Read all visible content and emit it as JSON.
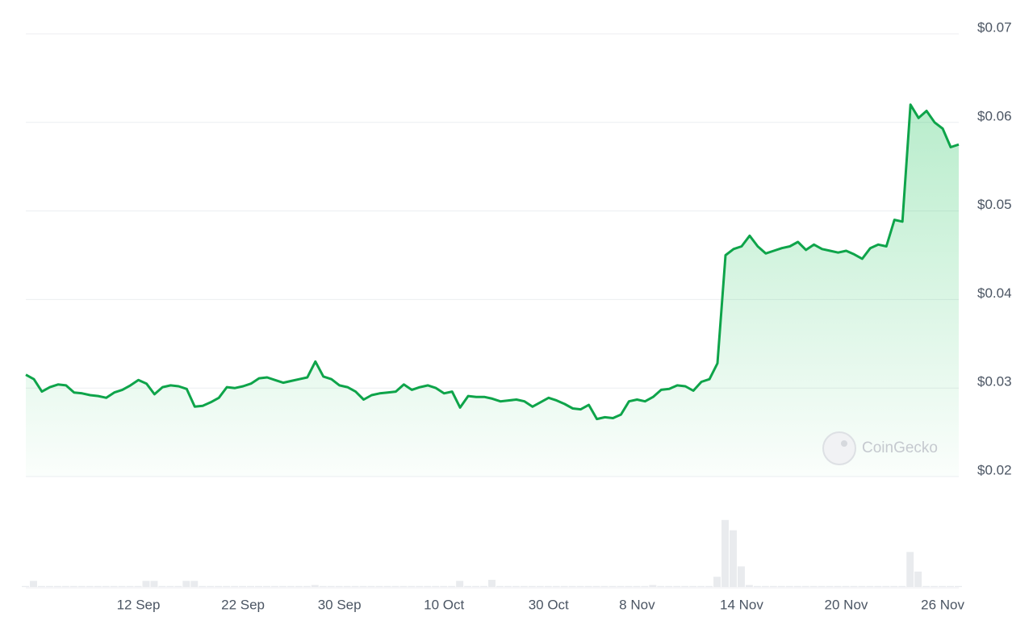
{
  "chart_data": {
    "type": "line",
    "watermark": "CoinGecko",
    "categories": [
      null,
      null,
      null,
      null,
      null,
      null,
      null,
      null,
      null,
      null,
      null,
      null,
      null,
      null,
      "12 Sep",
      null,
      null,
      null,
      null,
      null,
      null,
      null,
      null,
      null,
      null,
      null,
      null,
      "22 Sep",
      null,
      null,
      null,
      null,
      null,
      null,
      null,
      null,
      null,
      null,
      null,
      "30 Sep",
      null,
      null,
      null,
      null,
      null,
      null,
      null,
      null,
      null,
      null,
      null,
      null,
      "10 Oct",
      null,
      null,
      null,
      null,
      null,
      null,
      null,
      null,
      null,
      null,
      null,
      null,
      "30 Oct",
      null,
      null,
      null,
      null,
      null,
      null,
      null,
      null,
      null,
      null,
      "8 Nov",
      null,
      null,
      null,
      null,
      null,
      null,
      null,
      null,
      null,
      null,
      null,
      null,
      "14 Nov",
      null,
      null,
      null,
      null,
      null,
      null,
      null,
      null,
      null,
      null,
      null,
      null,
      "20 Nov",
      null,
      null,
      null,
      null,
      null,
      null,
      null,
      null,
      null,
      null,
      null,
      "26 Nov",
      null,
      null
    ],
    "series": [
      {
        "color": "#0ea44a",
        "values": [
          0.0315,
          0.031,
          0.0296,
          0.0301,
          0.0304,
          0.0303,
          0.0295,
          0.0294,
          0.0292,
          0.0291,
          0.0289,
          0.0295,
          0.0298,
          0.0303,
          0.0309,
          0.0305,
          0.0293,
          0.0301,
          0.0303,
          0.0302,
          0.0299,
          0.0279,
          0.028,
          0.0284,
          0.0289,
          0.0301,
          0.03,
          0.0302,
          0.0305,
          0.0311,
          0.0312,
          0.0309,
          0.0306,
          0.0308,
          0.031,
          0.0312,
          0.033,
          0.0313,
          0.031,
          0.0303,
          0.0301,
          0.0296,
          0.0287,
          0.0292,
          0.0294,
          0.0295,
          0.0296,
          0.0304,
          0.0298,
          0.0301,
          0.0303,
          0.03,
          0.0294,
          0.0296,
          0.0278,
          0.0291,
          0.029,
          0.029,
          0.0288,
          0.0285,
          0.0286,
          0.0287,
          0.0285,
          0.0279,
          0.0284,
          0.0289,
          0.0286,
          0.0282,
          0.0277,
          0.0276,
          0.0281,
          0.0265,
          0.0267,
          0.0266,
          0.027,
          0.0285,
          0.0287,
          0.0285,
          0.029,
          0.0298,
          0.0299,
          0.0303,
          0.0302,
          0.0297,
          0.0307,
          0.031,
          0.0328,
          0.045,
          0.0457,
          0.046,
          0.0472,
          0.046,
          0.0452,
          0.0455,
          0.0458,
          0.046,
          0.0465,
          0.0456,
          0.0462,
          0.0457,
          0.0455,
          0.0453,
          0.0455,
          0.0451,
          0.0446,
          0.0458,
          0.0462,
          0.046,
          0.049,
          0.0488,
          0.062,
          0.0605,
          0.0613,
          0.06,
          0.0593,
          0.0572,
          0.0575
        ]
      }
    ],
    "volume": [
      1,
      6,
      1,
      1,
      1,
      1,
      1,
      1,
      1,
      1,
      1,
      1,
      1,
      1,
      1,
      6,
      6,
      1,
      1,
      1,
      6,
      6,
      1,
      1,
      1,
      1,
      1,
      1,
      1,
      1,
      1,
      1,
      1,
      1,
      1,
      1,
      2,
      1,
      1,
      1,
      1,
      1,
      1,
      1,
      1,
      1,
      1,
      1,
      1,
      1,
      1,
      1,
      1,
      1,
      6,
      1,
      1,
      1,
      7,
      1,
      1,
      1,
      1,
      1,
      1,
      1,
      1,
      1,
      1,
      1,
      1,
      1,
      1,
      1,
      1,
      1,
      1,
      1,
      2,
      1,
      1,
      1,
      1,
      1,
      1,
      1,
      10,
      65,
      55,
      20,
      2,
      1,
      1,
      1,
      1,
      1,
      1,
      1,
      1,
      1,
      1,
      1,
      1,
      1,
      1,
      1,
      1,
      1,
      1,
      1,
      34,
      15,
      1,
      1,
      1,
      1,
      1
    ],
    "volume_lim": [
      0,
      100
    ],
    "ylim": [
      0.02,
      0.07
    ],
    "yticks": [
      {
        "value": 0.02,
        "label": "$0.02"
      },
      {
        "value": 0.03,
        "label": "$0.03"
      },
      {
        "value": 0.04,
        "label": "$0.04"
      },
      {
        "value": 0.05,
        "label": "$0.05"
      },
      {
        "value": 0.06,
        "label": "$0.06"
      },
      {
        "value": 0.07,
        "label": "$0.07"
      }
    ],
    "grid": true
  }
}
